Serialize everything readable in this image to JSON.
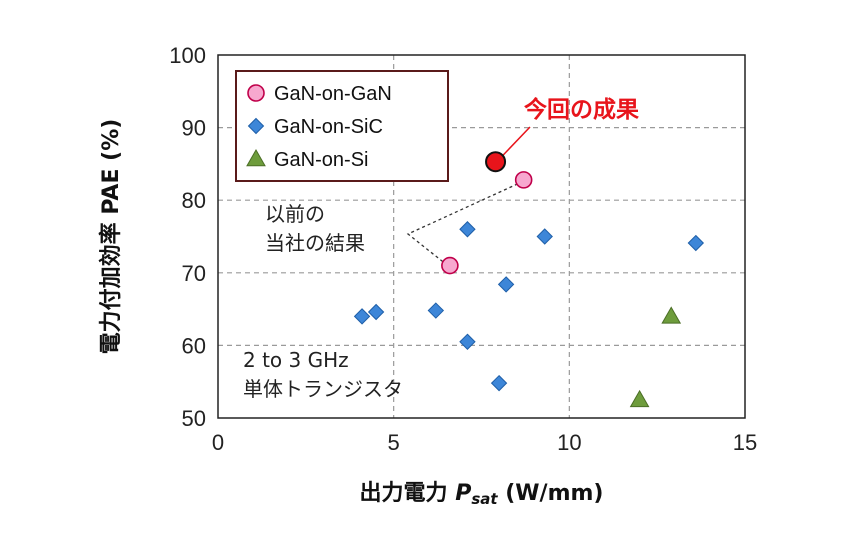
{
  "chart_data": {
    "type": "scatter",
    "xlabel_prefix": "出力電力 ",
    "xlabel_var": "P",
    "xlabel_sub": "sat",
    "xlabel_unit": " (W/mm)",
    "ylabel": "電力付加効率 PAE (%)",
    "xlim": [
      0,
      15
    ],
    "ylim": [
      50,
      100
    ],
    "xticks": [
      0,
      5,
      10,
      15
    ],
    "yticks": [
      50,
      60,
      70,
      80,
      90,
      100
    ],
    "grid": true,
    "legend_position": "top-left",
    "series": [
      {
        "name": "GaN-on-GaN",
        "marker": "circle",
        "color": "#f7a8cf",
        "stroke": "#c0004a",
        "points": [
          [
            6.6,
            71
          ],
          [
            8.7,
            82.8
          ]
        ]
      },
      {
        "name": "GaN-on-SiC",
        "marker": "diamond",
        "color": "#3d86d8",
        "stroke": "#1f5fa8",
        "points": [
          [
            4.1,
            64
          ],
          [
            4.5,
            64.6
          ],
          [
            6.2,
            64.8
          ],
          [
            7.1,
            76
          ],
          [
            7.1,
            60.5
          ],
          [
            8.0,
            54.8
          ],
          [
            8.2,
            68.4
          ],
          [
            9.3,
            75
          ],
          [
            13.6,
            74.1
          ]
        ]
      },
      {
        "name": "GaN-on-Si",
        "marker": "triangle",
        "color": "#6e9c3c",
        "stroke": "#4b6e26",
        "points": [
          [
            12.0,
            52.5
          ],
          [
            12.9,
            64
          ]
        ]
      }
    ],
    "highlight": {
      "label": "今回の成果",
      "point": [
        7.9,
        85.3
      ],
      "color": "#e8141b",
      "stroke": "#111111"
    },
    "annotations": {
      "previous_line1": "以前の",
      "previous_line2": "当社の結果",
      "condition_line1": "2 to 3 GHz",
      "condition_line2": "単体トランジスタ"
    }
  }
}
